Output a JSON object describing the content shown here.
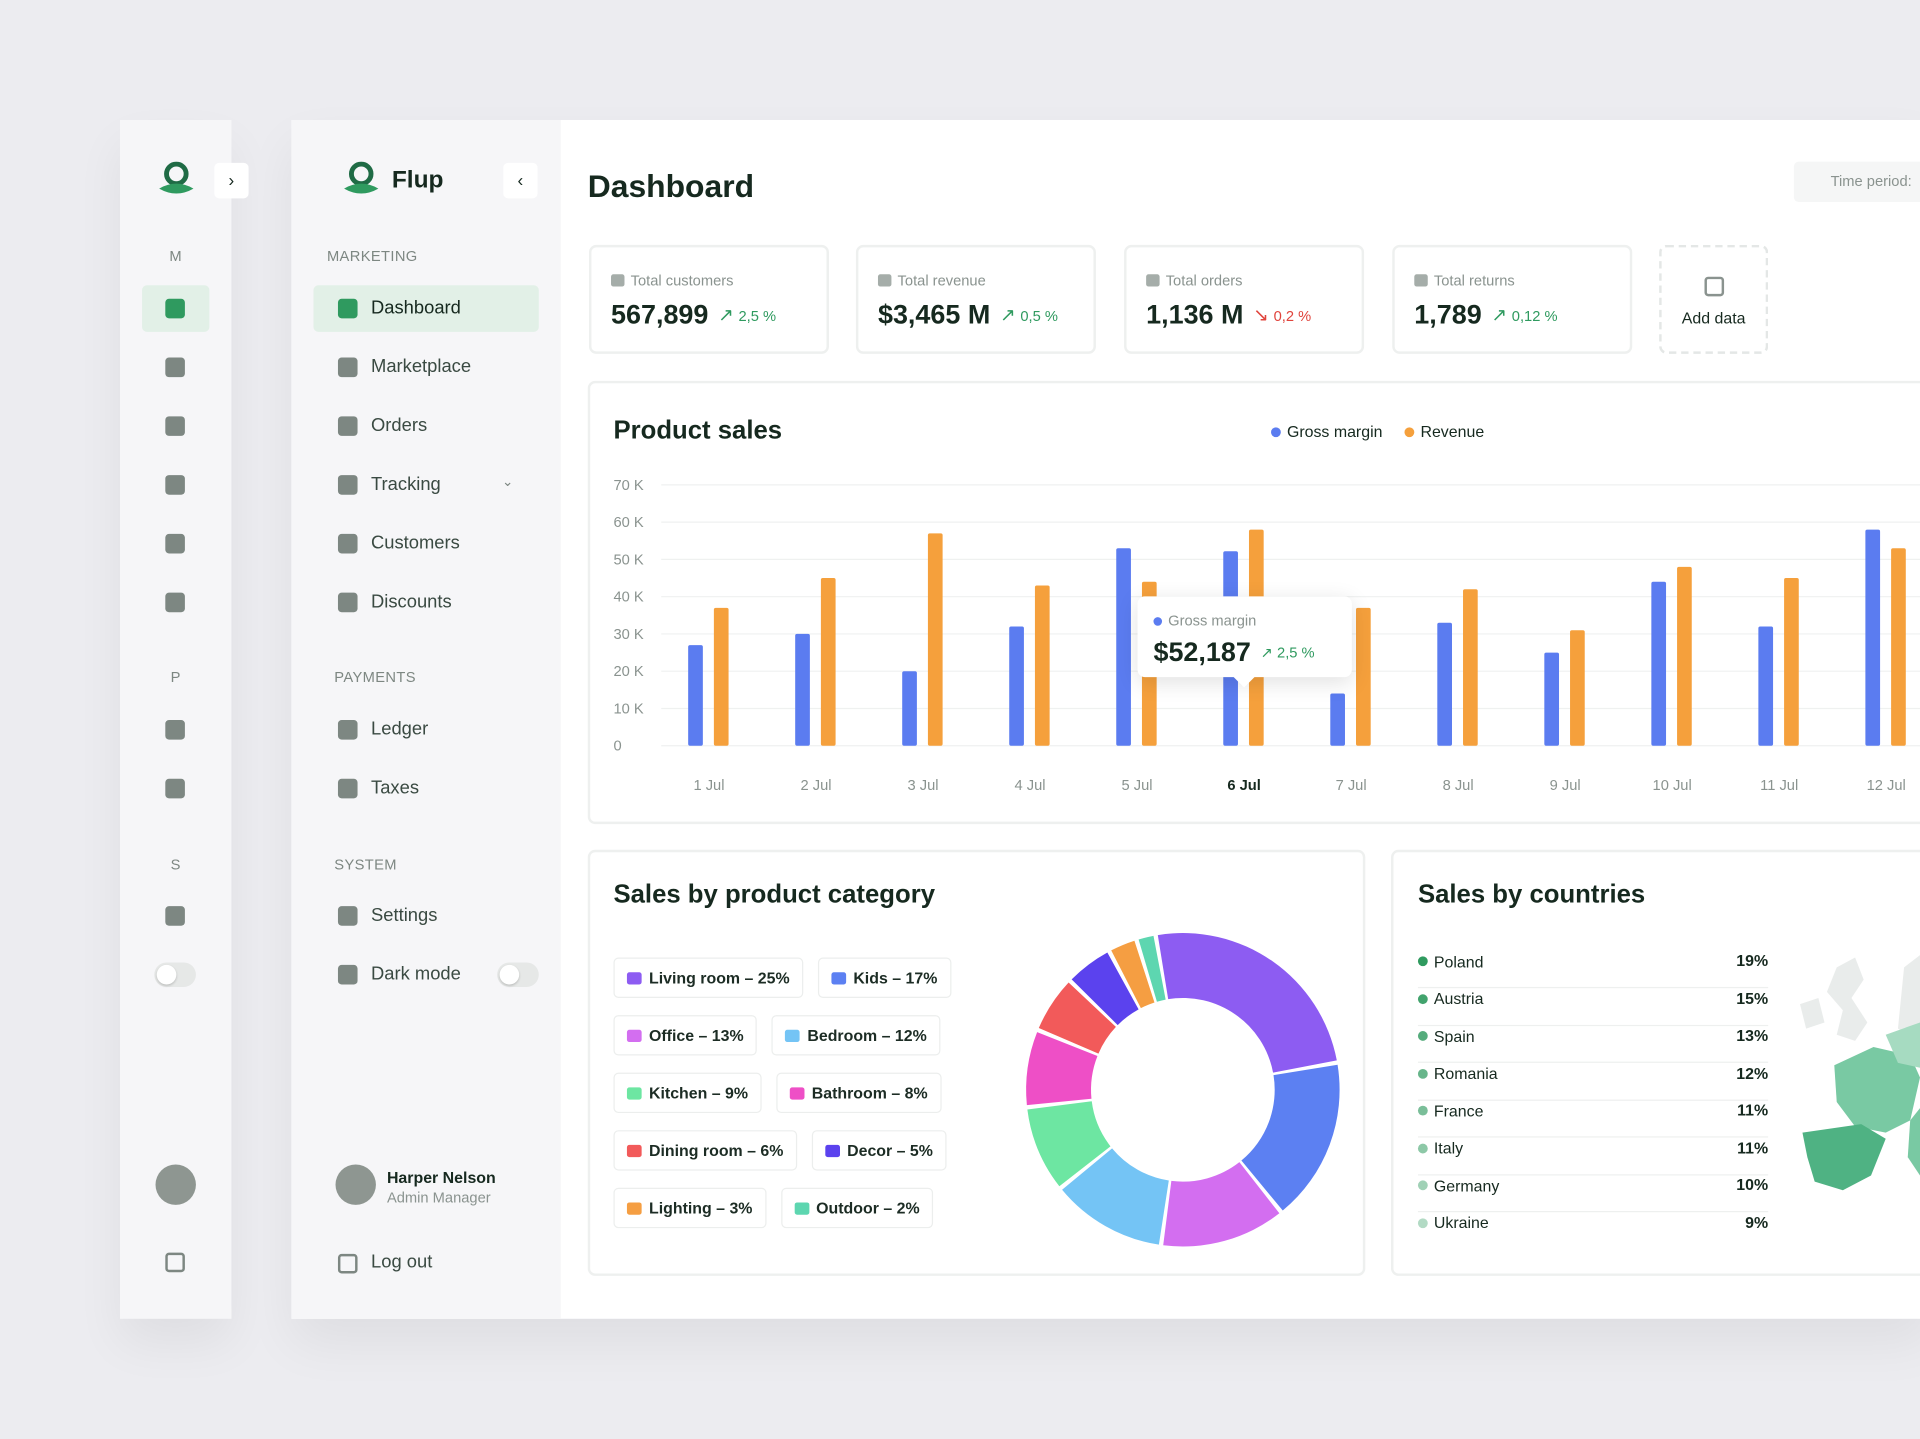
{
  "mini_sidebar": {
    "sections": [
      "M",
      "P",
      "S"
    ]
  },
  "sidebar": {
    "brand": "Flup",
    "sections": [
      {
        "title": "MARKETING",
        "items": [
          "Dashboard",
          "Marketplace",
          "Orders",
          "Tracking",
          "Customers",
          "Discounts"
        ]
      },
      {
        "title": "PAYMENTS",
        "items": [
          "Ledger",
          "Taxes"
        ]
      },
      {
        "title": "SYSTEM",
        "items": [
          "Settings",
          "Dark mode"
        ]
      }
    ],
    "user": {
      "name": "Harper Nelson",
      "role": "Admin Manager"
    },
    "logout": "Log out"
  },
  "header": {
    "title": "Dashboard",
    "time_period": "Time period:"
  },
  "kpis": [
    {
      "label": "Total customers",
      "value": "567,899",
      "change": "2,5 %",
      "trend": "up"
    },
    {
      "label": "Total revenue",
      "value": "$3,465 M",
      "change": "0,5 %",
      "trend": "up"
    },
    {
      "label": "Total orders",
      "value": "1,136 M",
      "change": "0,2 %",
      "trend": "down"
    },
    {
      "label": "Total returns",
      "value": "1,789",
      "change": "0,12 %",
      "trend": "up"
    }
  ],
  "add_data": "Add data",
  "chart_data": [
    {
      "type": "bar",
      "title": "Product sales",
      "categories": [
        "1 Jul",
        "2 Jul",
        "3 Jul",
        "4 Jul",
        "5 Jul",
        "6 Jul",
        "7 Jul",
        "8 Jul",
        "9 Jul",
        "10 Jul",
        "11 Jul",
        "12 Jul"
      ],
      "series": [
        {
          "name": "Gross margin",
          "color": "#5b7cf0",
          "values": [
            27,
            30,
            20,
            32,
            53,
            52.187,
            14,
            33,
            25,
            44,
            32,
            58
          ]
        },
        {
          "name": "Revenue",
          "color": "#f5a03c",
          "values": [
            37,
            45,
            57,
            43,
            44,
            58,
            37,
            42,
            31,
            48,
            45,
            53
          ]
        }
      ],
      "ylim": [
        0,
        70
      ],
      "yticks": [
        0,
        {
          "value": 10,
          "label": "10 K"
        },
        {
          "value": 20,
          "label": "20 K"
        },
        {
          "value": 30,
          "label": "30 K"
        },
        {
          "value": 40,
          "label": "40 K"
        },
        {
          "value": 50,
          "label": "50 K"
        },
        {
          "value": 60,
          "label": "60 K"
        },
        {
          "value": 70,
          "label": "70 K"
        }
      ],
      "grid": true,
      "legend": "top",
      "tooltip": {
        "series": "Gross margin",
        "value": "$52,187",
        "change": "2,5 %"
      }
    },
    {
      "type": "pie",
      "title": "Sales by product category",
      "categories": [
        "Living room",
        "Kids",
        "Office",
        "Bedroom",
        "Kitchen",
        "Bathroom",
        "Dining room",
        "Decor",
        "Lighting",
        "Outdoor"
      ],
      "values": [
        25,
        17,
        13,
        12,
        9,
        8,
        6,
        5,
        3,
        2
      ],
      "value_labels": [
        "Living room – 25%",
        "Kids – 17%",
        "Office – 13%",
        "Bedroom – 12%",
        "Kitchen – 9%",
        "Bathroom – 8%",
        "Dining room – 6%",
        "Decor – 5%",
        "Lighting – 3%",
        "Outdoor – 2%"
      ],
      "colors": [
        "#8d5cf2",
        "#5c80f2",
        "#d36ef0",
        "#74c4f5",
        "#6de6a2",
        "#ee4fc6",
        "#f25a5a",
        "#5b42ee",
        "#f59e42",
        "#5dd6b0"
      ]
    }
  ],
  "countries": {
    "title": "Sales by countries",
    "rows": [
      {
        "name": "Poland",
        "share": "19%"
      },
      {
        "name": "Austria",
        "share": "15%"
      },
      {
        "name": "Spain",
        "share": "13%"
      },
      {
        "name": "Romania",
        "share": "12%"
      },
      {
        "name": "France",
        "share": "11%"
      },
      {
        "name": "Italy",
        "share": "11%"
      },
      {
        "name": "Germany",
        "share": "10%"
      },
      {
        "name": "Ukraine",
        "share": "9%"
      }
    ]
  }
}
